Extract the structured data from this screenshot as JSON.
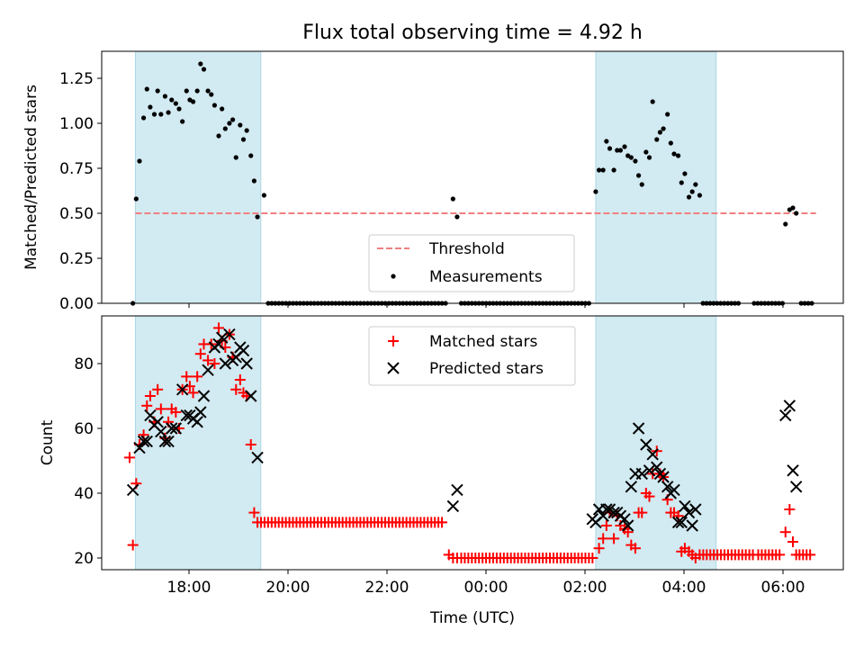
{
  "title": "Flux total observing time = 4.92 h",
  "colors": {
    "shade": "#add8e6",
    "threshold": "#f08080",
    "matched": "#ff0000",
    "predicted": "#000000",
    "measurement": "#000000"
  },
  "chart_data": [
    {
      "type": "scatter",
      "panel": "top",
      "ylabel": "Matched/Predicted stars",
      "ylim": [
        0,
        1.4
      ],
      "yticks": [
        "0.00",
        "0.25",
        "0.50",
        "0.75",
        "1.00",
        "1.25"
      ],
      "legend": {
        "placement": "lower-center",
        "threshold_label": "Threshold",
        "measurements_label": "Measurements"
      },
      "threshold": 0.5,
      "threshold_x_range": [
        "16:55",
        "06:40"
      ],
      "shaded_intervals": [
        [
          "16:55",
          "19:27"
        ],
        [
          "02:13",
          "04:39"
        ]
      ],
      "measurements": [
        [
          "16:52",
          0.0
        ],
        [
          "16:56",
          0.58
        ],
        [
          "17:00",
          0.79
        ],
        [
          "17:05",
          1.03
        ],
        [
          "17:09",
          1.19
        ],
        [
          "17:13",
          1.09
        ],
        [
          "17:18",
          1.05
        ],
        [
          "17:22",
          1.18
        ],
        [
          "17:26",
          1.05
        ],
        [
          "17:31",
          1.15
        ],
        [
          "17:35",
          1.06
        ],
        [
          "17:39",
          1.13
        ],
        [
          "17:44",
          1.11
        ],
        [
          "17:48",
          1.08
        ],
        [
          "17:52",
          1.01
        ],
        [
          "17:57",
          1.18
        ],
        [
          "18:01",
          1.13
        ],
        [
          "18:05",
          1.12
        ],
        [
          "18:10",
          1.18
        ],
        [
          "18:14",
          1.33
        ],
        [
          "18:18",
          1.3
        ],
        [
          "18:23",
          1.18
        ],
        [
          "18:27",
          1.16
        ],
        [
          "18:31",
          1.1
        ],
        [
          "18:36",
          0.93
        ],
        [
          "18:40",
          1.08
        ],
        [
          "18:44",
          0.97
        ],
        [
          "18:49",
          1.0
        ],
        [
          "18:53",
          1.02
        ],
        [
          "18:57",
          0.81
        ],
        [
          "19:02",
          0.99
        ],
        [
          "19:06",
          0.91
        ],
        [
          "19:10",
          0.96
        ],
        [
          "19:15",
          0.82
        ],
        [
          "19:19",
          0.68
        ],
        [
          "19:23",
          0.48
        ],
        [
          "19:31",
          0.6
        ],
        [
          "23:20",
          0.58
        ],
        [
          "23:25",
          0.48
        ],
        [
          "02:13",
          0.62
        ],
        [
          "02:17",
          0.74
        ],
        [
          "02:22",
          0.74
        ],
        [
          "02:26",
          0.9
        ],
        [
          "02:30",
          0.86
        ],
        [
          "02:35",
          0.74
        ],
        [
          "02:39",
          0.85
        ],
        [
          "02:43",
          0.85
        ],
        [
          "02:48",
          0.87
        ],
        [
          "02:52",
          0.82
        ],
        [
          "02:56",
          0.81
        ],
        [
          "03:01",
          0.79
        ],
        [
          "03:05",
          0.71
        ],
        [
          "03:09",
          0.66
        ],
        [
          "03:14",
          0.84
        ],
        [
          "03:18",
          0.81
        ],
        [
          "03:22",
          1.12
        ],
        [
          "03:27",
          0.91
        ],
        [
          "03:31",
          0.95
        ],
        [
          "03:35",
          0.97
        ],
        [
          "03:40",
          1.05
        ],
        [
          "03:44",
          0.89
        ],
        [
          "03:48",
          0.83
        ],
        [
          "03:53",
          0.82
        ],
        [
          "03:57",
          0.67
        ],
        [
          "04:01",
          0.72
        ],
        [
          "04:06",
          0.59
        ],
        [
          "04:10",
          0.62
        ],
        [
          "04:14",
          0.66
        ],
        [
          "04:19",
          0.6
        ],
        [
          "06:03",
          0.44
        ],
        [
          "06:08",
          0.52
        ],
        [
          "06:12",
          0.53
        ],
        [
          "06:16",
          0.5
        ]
      ],
      "zero_ranges": [
        [
          "19:36",
          "23:15"
        ],
        [
          "23:30",
          "02:09"
        ],
        [
          "04:23",
          "05:08"
        ],
        [
          "05:25",
          "06:00"
        ],
        [
          "06:22",
          "06:35"
        ]
      ]
    },
    {
      "type": "scatter",
      "panel": "bottom",
      "xlabel": "Time (UTC)",
      "ylabel": "Count",
      "xticks": [
        "18:00",
        "20:00",
        "22:00",
        "00:00",
        "02:00",
        "04:00",
        "06:00"
      ],
      "yticks": [
        "20",
        "40",
        "60",
        "80"
      ],
      "ylim": [
        16,
        94
      ],
      "legend": {
        "placement": "upper-center",
        "matched_label": "Matched stars",
        "predicted_label": "Predicted stars"
      },
      "shaded_intervals": [
        [
          "16:55",
          "19:27"
        ],
        [
          "02:13",
          "04:39"
        ]
      ],
      "series": [
        {
          "name": "Matched stars",
          "marker": "+",
          "points": [
            [
              "16:48",
              51
            ],
            [
              "16:52",
              24
            ],
            [
              "16:56",
              43
            ],
            [
              "17:00",
              55
            ],
            [
              "17:05",
              58
            ],
            [
              "17:09",
              67
            ],
            [
              "17:13",
              70
            ],
            [
              "17:18",
              62
            ],
            [
              "17:22",
              72
            ],
            [
              "17:26",
              66
            ],
            [
              "17:31",
              57
            ],
            [
              "17:35",
              62
            ],
            [
              "17:39",
              66
            ],
            [
              "17:44",
              65
            ],
            [
              "17:48",
              60
            ],
            [
              "17:52",
              72
            ],
            [
              "17:57",
              76
            ],
            [
              "18:01",
              73
            ],
            [
              "18:05",
              71
            ],
            [
              "18:10",
              76
            ],
            [
              "18:14",
              83
            ],
            [
              "18:18",
              86
            ],
            [
              "18:23",
              81
            ],
            [
              "18:27",
              86
            ],
            [
              "18:31",
              80
            ],
            [
              "18:36",
              91
            ],
            [
              "18:40",
              87
            ],
            [
              "18:44",
              85
            ],
            [
              "18:49",
              89
            ],
            [
              "18:53",
              82
            ],
            [
              "18:57",
              72
            ],
            [
              "19:02",
              75
            ],
            [
              "19:06",
              71
            ],
            [
              "19:10",
              70
            ],
            [
              "19:15",
              55
            ],
            [
              "19:19",
              34
            ],
            [
              "23:15",
              21
            ],
            [
              "23:20",
              20
            ],
            [
              "23:25",
              20
            ],
            [
              "02:17",
              23
            ],
            [
              "02:22",
              26
            ],
            [
              "02:26",
              30
            ],
            [
              "02:30",
              34
            ],
            [
              "02:35",
              26
            ],
            [
              "02:39",
              33
            ],
            [
              "02:43",
              30
            ],
            [
              "02:48",
              29
            ],
            [
              "02:52",
              28
            ],
            [
              "02:56",
              24
            ],
            [
              "03:01",
              23
            ],
            [
              "03:05",
              34
            ],
            [
              "03:09",
              34
            ],
            [
              "03:14",
              40
            ],
            [
              "03:18",
              39
            ],
            [
              "03:22",
              46
            ],
            [
              "03:27",
              53
            ],
            [
              "03:31",
              46
            ],
            [
              "03:35",
              45
            ],
            [
              "03:40",
              38
            ],
            [
              "03:44",
              34
            ],
            [
              "03:48",
              34
            ],
            [
              "03:53",
              33
            ],
            [
              "03:57",
              22
            ],
            [
              "04:01",
              23
            ],
            [
              "04:06",
              22
            ],
            [
              "04:10",
              21
            ],
            [
              "04:14",
              20
            ],
            [
              "06:03",
              28
            ],
            [
              "06:08",
              35
            ],
            [
              "06:12",
              25
            ],
            [
              "06:16",
              21
            ]
          ],
          "constant_ranges": [
            [
              "19:23",
              "23:10",
              31
            ],
            [
              "23:30",
              "02:13",
              20
            ],
            [
              "04:19",
              "05:25",
              21
            ],
            [
              "05:30",
              "06:00",
              21
            ],
            [
              "06:20",
              "06:35",
              21
            ]
          ]
        },
        {
          "name": "Predicted stars",
          "marker": "x",
          "points": [
            [
              "16:52",
              41
            ],
            [
              "17:00",
              54
            ],
            [
              "17:05",
              56
            ],
            [
              "17:09",
              56
            ],
            [
              "17:13",
              64
            ],
            [
              "17:18",
              61
            ],
            [
              "17:22",
              62
            ],
            [
              "17:26",
              59
            ],
            [
              "17:31",
              56
            ],
            [
              "17:35",
              56
            ],
            [
              "17:39",
              60
            ],
            [
              "17:44",
              60
            ],
            [
              "17:52",
              72
            ],
            [
              "17:57",
              64
            ],
            [
              "18:01",
              64
            ],
            [
              "18:05",
              63
            ],
            [
              "18:10",
              62
            ],
            [
              "18:14",
              65
            ],
            [
              "18:18",
              70
            ],
            [
              "18:23",
              78
            ],
            [
              "18:31",
              85
            ],
            [
              "18:36",
              86
            ],
            [
              "18:40",
              88
            ],
            [
              "18:44",
              80
            ],
            [
              "18:49",
              89
            ],
            [
              "18:53",
              81
            ],
            [
              "18:57",
              82
            ],
            [
              "19:02",
              85
            ],
            [
              "19:06",
              84
            ],
            [
              "19:10",
              80
            ],
            [
              "19:15",
              70
            ],
            [
              "19:23",
              51
            ],
            [
              "23:20",
              36
            ],
            [
              "23:25",
              41
            ],
            [
              "02:09",
              32
            ],
            [
              "02:13",
              31
            ],
            [
              "02:17",
              35
            ],
            [
              "02:22",
              33
            ],
            [
              "02:26",
              35
            ],
            [
              "02:30",
              35
            ],
            [
              "02:35",
              34
            ],
            [
              "02:39",
              34
            ],
            [
              "02:43",
              33
            ],
            [
              "02:48",
              32
            ],
            [
              "02:52",
              30
            ],
            [
              "02:56",
              42
            ],
            [
              "03:01",
              46
            ],
            [
              "03:05",
              60
            ],
            [
              "03:09",
              46
            ],
            [
              "03:14",
              55
            ],
            [
              "03:18",
              47
            ],
            [
              "03:22",
              52
            ],
            [
              "03:27",
              48
            ],
            [
              "03:31",
              46
            ],
            [
              "03:35",
              45
            ],
            [
              "03:40",
              42
            ],
            [
              "03:44",
              40
            ],
            [
              "03:48",
              41
            ],
            [
              "03:53",
              31
            ],
            [
              "03:57",
              31
            ],
            [
              "04:01",
              36
            ],
            [
              "04:06",
              34
            ],
            [
              "04:10",
              30
            ],
            [
              "04:14",
              35
            ],
            [
              "06:03",
              64
            ],
            [
              "06:08",
              67
            ],
            [
              "06:12",
              47
            ],
            [
              "06:16",
              42
            ]
          ]
        }
      ]
    }
  ]
}
